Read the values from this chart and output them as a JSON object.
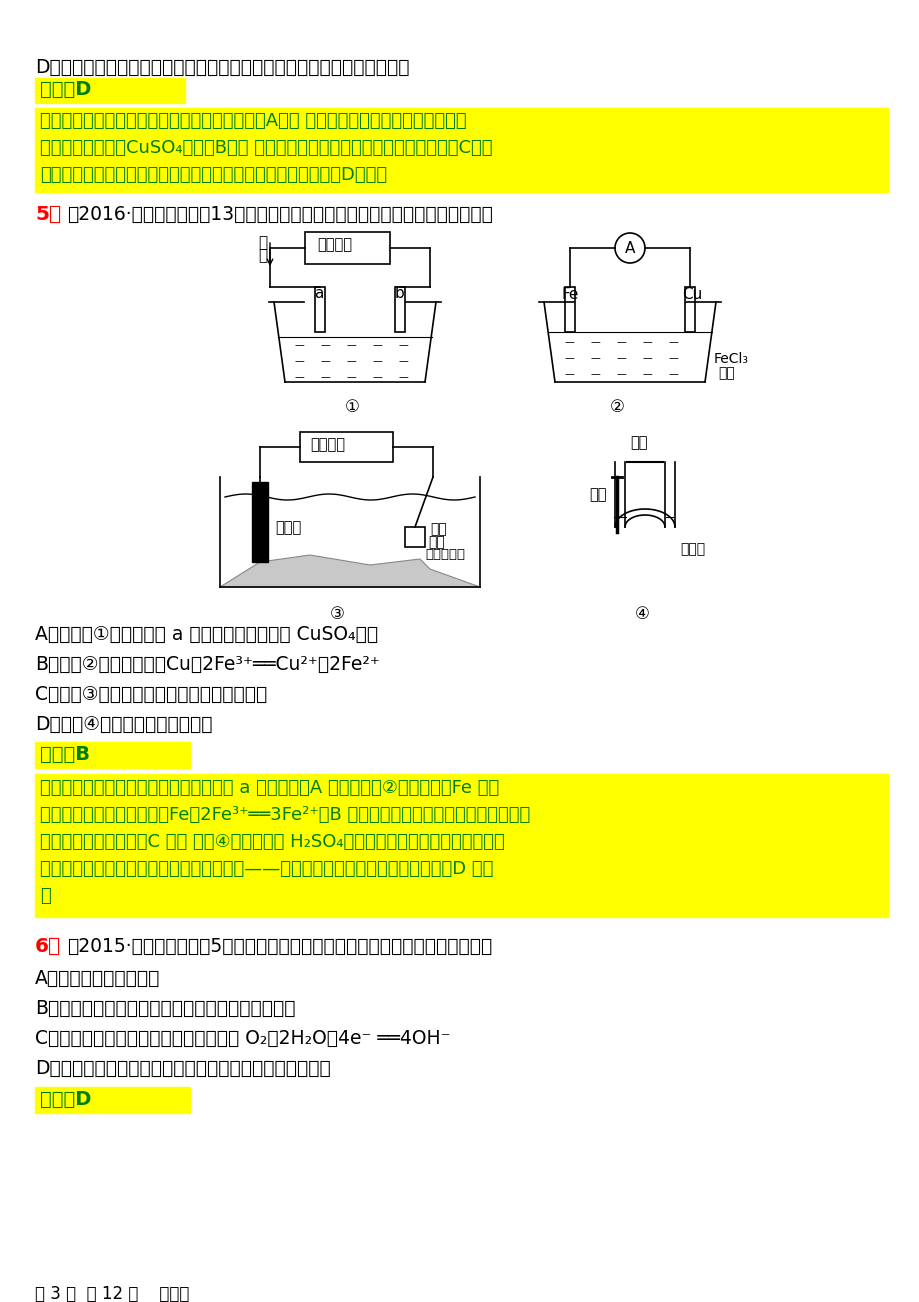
{
  "page_bg": "#ffffff",
  "highlight_yellow": "#ffff00",
  "text_black": "#000000",
  "text_red": "#ff0000",
  "text_green": "#008000",
  "figsize": [
    9.2,
    13.02
  ],
  "dpi": 100,
  "line_D": "D．铜锌原电池，铜浸入硫酸锌溶液，锌浸入硫酸铜溶液，中间用盐桥连接",
  "ans_D_label": "答案：D",
  "explain_1_lines": [
    "　钢铁发生吸氧腐蚀时，铁作负极，碳作正极，A正确 精炼铜时，粗铜作阳极，纯铜作阴",
    "极，电解质溶液为CuSO₄溶液，B正确 电解饱和食盐水，石墨作阳极，铁作阴极，C正确",
    "；盐桥式原电池中电极金属与电解质溶液中金属离子应该一致，D错误。"
  ],
  "q5_label": "5．",
  "q5_text": "（2016·山东济宁一模，13）下列关于各装置图的叙述中，不正确的是（　　）",
  "q5_A": "A．用装置①精炼铜，则 a 极为粗铜，电解质为 CuSO₄溶液",
  "q5_B": "B．装置②的总反应是：Cu＋2Fe³⁺══Cu²⁺＋2Fe²⁺",
  "q5_C": "C．装置③中钢闸门应与外接电源的负极相连",
  "q5_D": "D．装置④中的铁钉几乎不被腐蚀",
  "ans_B_label": "答案：B",
  "explain_2_lines": [
    "　精炼铜时，粗铜为阳极，由电流方向知 a 极为阳极，A 正确；装置②为原电池，Fe 作负",
    "极，铜为正极，总反应是：Fe＋2Fe³⁺══3Fe²⁺，B 错误；在电解池中，铁被保护，则应与",
    "外接电源的负极相连，C 正确 装置④中，由于浓 H₂SO₄的吸水性，使铜丝和铁钉连接处空",
    "气非常干燥，缺少了构成原电池的一个条件——电解质溶液，故铁钉几乎不被腐蚀，D 正确",
    "。"
  ],
  "q6_label": "6．",
  "q6_text": "（2015·北京西城期末，5）下列有关钢铁腐蚀与防护的说法不正确的是（　　）",
  "q6_A": "A．生铁比纯铁容易生锈",
  "q6_B": "B．钢铁的腐蚀生成疏松氧化膜，不能保护内层金属",
  "q6_C": "C．钢铁发生吸氧腐蚀时，正极反应式为 O₂＋2H₂O＋4e⁻ ══4OH⁻",
  "q6_D": "D．为保护地下钢管不受腐蚀，可使其与直流电源正极相连",
  "ans_D2_label": "答案：D",
  "footer": "第 3 页  共 12 页    倡进东"
}
